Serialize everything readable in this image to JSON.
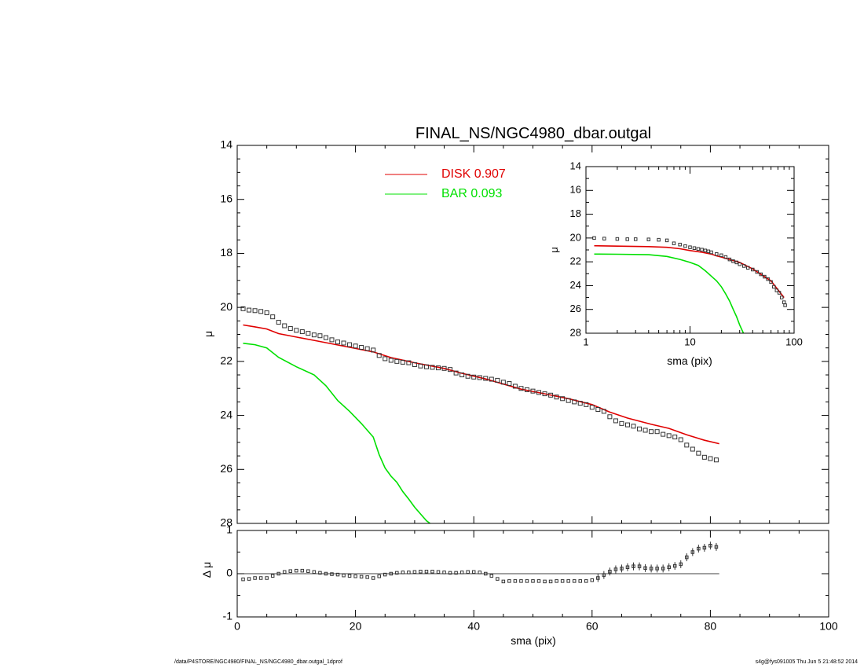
{
  "chart_data": [
    {
      "type": "scatter",
      "title": "FINAL_NS/NGC4980_dbar.outgal",
      "xlabel": "",
      "ylabel": "μ",
      "xlim": [
        0,
        100
      ],
      "ylim": [
        28,
        14
      ],
      "y_reversed": true,
      "yticks": [
        14,
        16,
        18,
        20,
        22,
        24,
        26,
        28
      ],
      "grid": false,
      "legend": {
        "placement": "top-center",
        "entries": [
          {
            "label": "DISK  0.907",
            "color": "#e00000"
          },
          {
            "label": "BAR  0.093",
            "color": "#00e000"
          }
        ]
      },
      "series": [
        {
          "name": "DISK",
          "kind": "line",
          "color": "#e00000",
          "x": [
            1,
            3,
            5,
            7,
            10,
            13,
            16,
            20,
            23,
            26,
            30,
            35,
            38,
            42,
            45,
            48,
            52,
            56,
            60,
            63,
            66,
            70,
            73,
            76,
            79,
            81.5
          ],
          "y": [
            20.65,
            20.72,
            20.8,
            20.97,
            21.1,
            21.22,
            21.35,
            21.52,
            21.65,
            21.86,
            22.05,
            22.26,
            22.44,
            22.65,
            22.84,
            23.03,
            23.2,
            23.38,
            23.6,
            23.88,
            24.1,
            24.33,
            24.48,
            24.72,
            24.92,
            25.05
          ]
        },
        {
          "name": "BAR",
          "kind": "line",
          "color": "#00e000",
          "x": [
            1,
            3,
            5,
            7,
            10,
            13,
            15,
            17,
            19,
            21,
            23,
            24,
            25,
            26,
            27,
            28,
            29,
            30,
            31,
            32,
            32.6
          ],
          "y": [
            21.33,
            21.38,
            21.5,
            21.85,
            22.2,
            22.5,
            22.9,
            23.45,
            23.85,
            24.3,
            24.8,
            25.45,
            25.95,
            26.25,
            26.48,
            26.82,
            27.1,
            27.4,
            27.65,
            27.9,
            28.0
          ]
        },
        {
          "name": "data",
          "kind": "points",
          "x": [
            1,
            2,
            3,
            4,
            5,
            6,
            7,
            8,
            9,
            10,
            11,
            12,
            13,
            14,
            15,
            16,
            17,
            18,
            19,
            20,
            21,
            22,
            23,
            24,
            25,
            26,
            27,
            28,
            29,
            30,
            31,
            32,
            33,
            34,
            35,
            36,
            37,
            38,
            39,
            40,
            41,
            42,
            43,
            44,
            45,
            46,
            47,
            48,
            49,
            50,
            51,
            52,
            53,
            54,
            55,
            56,
            57,
            58,
            59,
            60,
            61,
            62,
            63,
            64,
            65,
            66,
            67,
            68,
            69,
            70,
            71,
            72,
            73,
            74,
            75,
            76,
            77,
            78,
            79,
            80,
            81
          ],
          "y": [
            20.05,
            20.1,
            20.12,
            20.15,
            20.2,
            20.35,
            20.55,
            20.68,
            20.78,
            20.85,
            20.9,
            20.96,
            21.02,
            21.05,
            21.12,
            21.2,
            21.28,
            21.32,
            21.38,
            21.43,
            21.48,
            21.53,
            21.58,
            21.78,
            21.9,
            21.96,
            22.0,
            22.03,
            22.05,
            22.12,
            22.17,
            22.2,
            22.22,
            22.24,
            22.26,
            22.3,
            22.43,
            22.5,
            22.55,
            22.58,
            22.6,
            22.63,
            22.66,
            22.7,
            22.77,
            22.82,
            22.92,
            23.0,
            23.05,
            23.1,
            23.15,
            23.2,
            23.25,
            23.32,
            23.38,
            23.45,
            23.5,
            23.55,
            23.6,
            23.7,
            23.78,
            23.85,
            24.05,
            24.2,
            24.3,
            24.35,
            24.4,
            24.5,
            24.55,
            24.6,
            24.6,
            24.7,
            24.75,
            24.8,
            24.9,
            25.1,
            25.25,
            25.4,
            25.55,
            25.6,
            25.65
          ]
        }
      ]
    },
    {
      "type": "scatter",
      "title": "",
      "xlabel": "sma (pix)",
      "ylabel": "Δ μ",
      "xlim": [
        0,
        100
      ],
      "ylim": [
        -1,
        1
      ],
      "xticks": [
        0,
        20,
        40,
        60,
        80,
        100
      ],
      "yticks": [
        -1,
        0,
        1
      ],
      "reference_line": 0,
      "series": [
        {
          "name": "residuals",
          "kind": "points",
          "x": [
            1,
            2,
            3,
            4,
            5,
            6,
            7,
            8,
            9,
            10,
            11,
            12,
            13,
            14,
            15,
            16,
            17,
            18,
            19,
            20,
            21,
            22,
            23,
            24,
            25,
            26,
            27,
            28,
            29,
            30,
            31,
            32,
            33,
            34,
            35,
            36,
            37,
            38,
            39,
            40,
            41,
            42,
            43,
            44,
            45,
            46,
            47,
            48,
            49,
            50,
            51,
            52,
            53,
            54,
            55,
            56,
            57,
            58,
            59,
            60,
            61,
            62,
            63,
            64,
            65,
            66,
            67,
            68,
            69,
            70,
            71,
            72,
            73,
            74,
            75,
            76,
            77,
            78,
            79,
            80,
            81
          ],
          "y": [
            -0.13,
            -0.12,
            -0.1,
            -0.1,
            -0.1,
            -0.05,
            0.0,
            0.04,
            0.06,
            0.07,
            0.07,
            0.06,
            0.04,
            0.02,
            0.0,
            -0.01,
            -0.02,
            -0.04,
            -0.05,
            -0.06,
            -0.07,
            -0.08,
            -0.1,
            -0.06,
            -0.02,
            0.0,
            0.02,
            0.03,
            0.03,
            0.04,
            0.05,
            0.05,
            0.05,
            0.04,
            0.03,
            0.02,
            0.02,
            0.03,
            0.04,
            0.04,
            0.03,
            0.0,
            -0.05,
            -0.12,
            -0.18,
            -0.17,
            -0.17,
            -0.17,
            -0.17,
            -0.17,
            -0.17,
            -0.18,
            -0.18,
            -0.17,
            -0.17,
            -0.17,
            -0.17,
            -0.17,
            -0.17,
            -0.15,
            -0.1,
            -0.03,
            0.05,
            0.1,
            0.12,
            0.15,
            0.17,
            0.17,
            0.13,
            0.12,
            0.12,
            0.12,
            0.15,
            0.18,
            0.22,
            0.38,
            0.5,
            0.58,
            0.6,
            0.65,
            0.62
          ]
        }
      ]
    },
    {
      "type": "scatter",
      "title": "",
      "xlabel": "sma (pix)",
      "ylabel": "μ",
      "x_scale": "log",
      "xlim": [
        1,
        100
      ],
      "ylim": [
        28,
        14
      ],
      "y_reversed": true,
      "xticks": [
        1,
        10,
        100
      ],
      "yticks": [
        14,
        16,
        18,
        20,
        22,
        24,
        26,
        28
      ],
      "series": [
        {
          "name": "DISK",
          "kind": "line",
          "color": "#e00000",
          "x": [
            1.2,
            2,
            4,
            6,
            8,
            10,
            13,
            16,
            18,
            20,
            25,
            30,
            40,
            60,
            80
          ],
          "y": [
            20.65,
            20.68,
            20.72,
            20.78,
            20.9,
            21.05,
            21.2,
            21.35,
            21.5,
            21.6,
            21.85,
            22.05,
            22.6,
            23.6,
            25.0
          ]
        },
        {
          "name": "BAR",
          "kind": "line",
          "color": "#00e000",
          "x": [
            1.2,
            2,
            4,
            6,
            8,
            10,
            12,
            14,
            16,
            18,
            20,
            22,
            24,
            26,
            28,
            30,
            32.6
          ],
          "y": [
            21.35,
            21.36,
            21.4,
            21.55,
            21.8,
            22.05,
            22.3,
            22.75,
            23.2,
            23.6,
            24.1,
            24.7,
            25.3,
            26.0,
            26.6,
            27.3,
            28.0
          ]
        },
        {
          "name": "data",
          "kind": "points",
          "x": [
            1.2,
            1.5,
            2,
            2.5,
            3,
            4,
            5,
            6,
            7,
            8,
            9,
            10,
            11,
            12,
            13,
            14,
            15,
            16,
            18,
            20,
            22,
            24,
            26,
            28,
            30,
            33,
            36,
            40,
            44,
            48,
            52,
            56,
            60,
            64,
            68,
            72,
            76,
            80,
            82
          ],
          "y": [
            20.0,
            20.05,
            20.08,
            20.1,
            20.1,
            20.12,
            20.15,
            20.2,
            20.45,
            20.55,
            20.68,
            20.78,
            20.85,
            20.92,
            20.98,
            21.05,
            21.12,
            21.2,
            21.35,
            21.45,
            21.6,
            21.8,
            21.95,
            22.05,
            22.2,
            22.35,
            22.5,
            22.65,
            22.85,
            23.05,
            23.25,
            23.45,
            23.7,
            24.1,
            24.4,
            24.6,
            25.0,
            25.4,
            25.65
          ]
        }
      ]
    }
  ],
  "footer": {
    "left": "/data/P4STORE/NGC4980/FINAL_NS/NGC4980_dbar.outgal_1dprof",
    "right": "s4g@fys091005  Thu Jun  5 21:48:52 2014"
  }
}
